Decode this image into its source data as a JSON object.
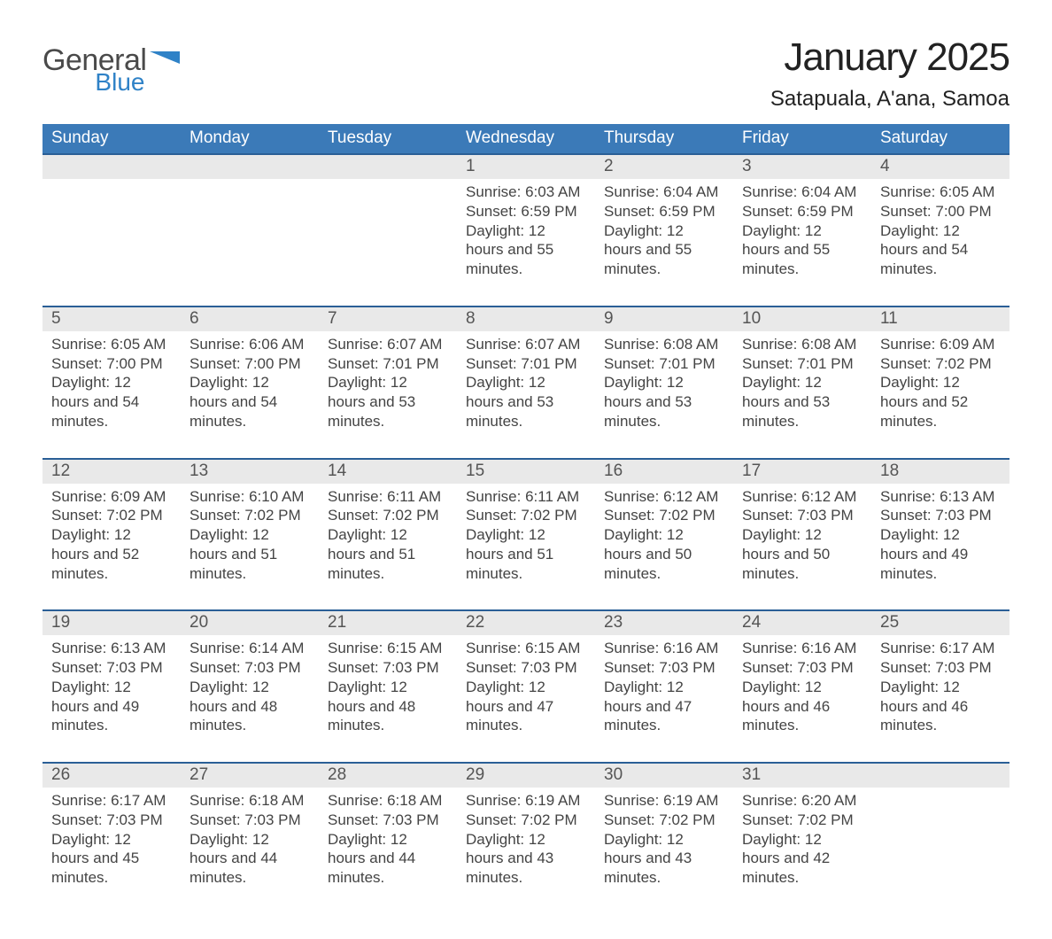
{
  "logo": {
    "word1": "General",
    "word2": "Blue"
  },
  "title": "January 2025",
  "location": "Satapuala, A'ana, Samoa",
  "colors": {
    "header_bg": "#3b7ab8",
    "row_border": "#2a5f96",
    "date_bg": "#e9e9e9",
    "logo_blue": "#2f82c7"
  },
  "day_headers": [
    "Sunday",
    "Monday",
    "Tuesday",
    "Wednesday",
    "Thursday",
    "Friday",
    "Saturday"
  ],
  "weeks": [
    [
      null,
      null,
      null,
      {
        "n": "1",
        "sunrise": "6:03 AM",
        "sunset": "6:59 PM",
        "daylight": "12 hours and 55 minutes."
      },
      {
        "n": "2",
        "sunrise": "6:04 AM",
        "sunset": "6:59 PM",
        "daylight": "12 hours and 55 minutes."
      },
      {
        "n": "3",
        "sunrise": "6:04 AM",
        "sunset": "6:59 PM",
        "daylight": "12 hours and 55 minutes."
      },
      {
        "n": "4",
        "sunrise": "6:05 AM",
        "sunset": "7:00 PM",
        "daylight": "12 hours and 54 minutes."
      }
    ],
    [
      {
        "n": "5",
        "sunrise": "6:05 AM",
        "sunset": "7:00 PM",
        "daylight": "12 hours and 54 minutes."
      },
      {
        "n": "6",
        "sunrise": "6:06 AM",
        "sunset": "7:00 PM",
        "daylight": "12 hours and 54 minutes."
      },
      {
        "n": "7",
        "sunrise": "6:07 AM",
        "sunset": "7:01 PM",
        "daylight": "12 hours and 53 minutes."
      },
      {
        "n": "8",
        "sunrise": "6:07 AM",
        "sunset": "7:01 PM",
        "daylight": "12 hours and 53 minutes."
      },
      {
        "n": "9",
        "sunrise": "6:08 AM",
        "sunset": "7:01 PM",
        "daylight": "12 hours and 53 minutes."
      },
      {
        "n": "10",
        "sunrise": "6:08 AM",
        "sunset": "7:01 PM",
        "daylight": "12 hours and 53 minutes."
      },
      {
        "n": "11",
        "sunrise": "6:09 AM",
        "sunset": "7:02 PM",
        "daylight": "12 hours and 52 minutes."
      }
    ],
    [
      {
        "n": "12",
        "sunrise": "6:09 AM",
        "sunset": "7:02 PM",
        "daylight": "12 hours and 52 minutes."
      },
      {
        "n": "13",
        "sunrise": "6:10 AM",
        "sunset": "7:02 PM",
        "daylight": "12 hours and 51 minutes."
      },
      {
        "n": "14",
        "sunrise": "6:11 AM",
        "sunset": "7:02 PM",
        "daylight": "12 hours and 51 minutes."
      },
      {
        "n": "15",
        "sunrise": "6:11 AM",
        "sunset": "7:02 PM",
        "daylight": "12 hours and 51 minutes."
      },
      {
        "n": "16",
        "sunrise": "6:12 AM",
        "sunset": "7:02 PM",
        "daylight": "12 hours and 50 minutes."
      },
      {
        "n": "17",
        "sunrise": "6:12 AM",
        "sunset": "7:03 PM",
        "daylight": "12 hours and 50 minutes."
      },
      {
        "n": "18",
        "sunrise": "6:13 AM",
        "sunset": "7:03 PM",
        "daylight": "12 hours and 49 minutes."
      }
    ],
    [
      {
        "n": "19",
        "sunrise": "6:13 AM",
        "sunset": "7:03 PM",
        "daylight": "12 hours and 49 minutes."
      },
      {
        "n": "20",
        "sunrise": "6:14 AM",
        "sunset": "7:03 PM",
        "daylight": "12 hours and 48 minutes."
      },
      {
        "n": "21",
        "sunrise": "6:15 AM",
        "sunset": "7:03 PM",
        "daylight": "12 hours and 48 minutes."
      },
      {
        "n": "22",
        "sunrise": "6:15 AM",
        "sunset": "7:03 PM",
        "daylight": "12 hours and 47 minutes."
      },
      {
        "n": "23",
        "sunrise": "6:16 AM",
        "sunset": "7:03 PM",
        "daylight": "12 hours and 47 minutes."
      },
      {
        "n": "24",
        "sunrise": "6:16 AM",
        "sunset": "7:03 PM",
        "daylight": "12 hours and 46 minutes."
      },
      {
        "n": "25",
        "sunrise": "6:17 AM",
        "sunset": "7:03 PM",
        "daylight": "12 hours and 46 minutes."
      }
    ],
    [
      {
        "n": "26",
        "sunrise": "6:17 AM",
        "sunset": "7:03 PM",
        "daylight": "12 hours and 45 minutes."
      },
      {
        "n": "27",
        "sunrise": "6:18 AM",
        "sunset": "7:03 PM",
        "daylight": "12 hours and 44 minutes."
      },
      {
        "n": "28",
        "sunrise": "6:18 AM",
        "sunset": "7:03 PM",
        "daylight": "12 hours and 44 minutes."
      },
      {
        "n": "29",
        "sunrise": "6:19 AM",
        "sunset": "7:02 PM",
        "daylight": "12 hours and 43 minutes."
      },
      {
        "n": "30",
        "sunrise": "6:19 AM",
        "sunset": "7:02 PM",
        "daylight": "12 hours and 43 minutes."
      },
      {
        "n": "31",
        "sunrise": "6:20 AM",
        "sunset": "7:02 PM",
        "daylight": "12 hours and 42 minutes."
      },
      null
    ]
  ],
  "labels": {
    "sunrise": "Sunrise: ",
    "sunset": "Sunset: ",
    "daylight": "Daylight: "
  }
}
